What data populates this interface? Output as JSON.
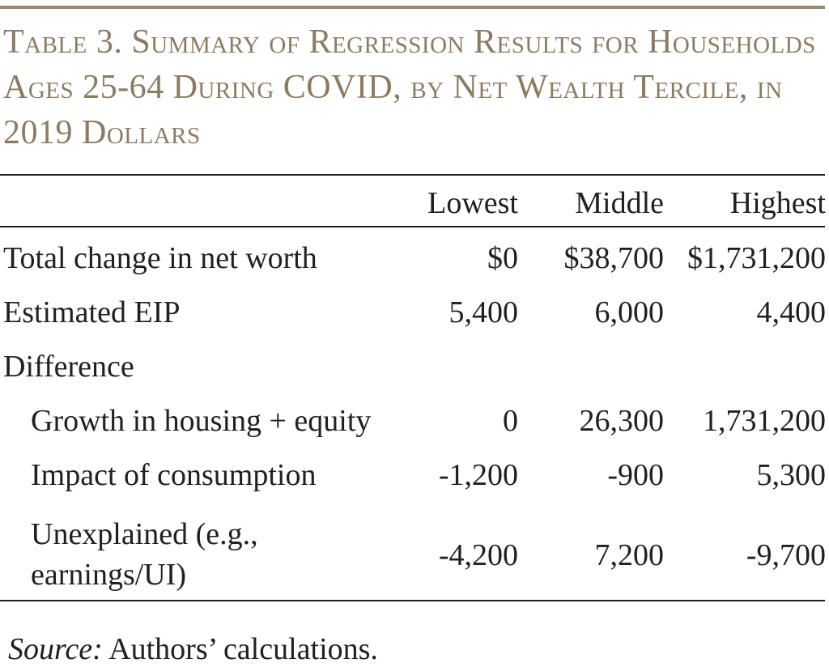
{
  "title": "Table 3. Summary of Regression Results for Households Ages 25-64 During COVID, by Net Wealth Tercile, in 2019 Dollars",
  "colors": {
    "title": "#8b7b63",
    "top_rule": "#9c8a6e",
    "text": "#231f20"
  },
  "columns": [
    "Lowest",
    "Middle",
    "Highest"
  ],
  "rows": [
    {
      "label": "Total change in net worth",
      "values": [
        "$0",
        "$38,700",
        "$1,731,200"
      ]
    },
    {
      "label": "Estimated EIP",
      "values": [
        "5,400",
        "6,000",
        "4,400"
      ]
    },
    {
      "label": "Difference"
    },
    {
      "label": "Growth in housing + equity",
      "values": [
        "0",
        "26,300",
        "1,731,200"
      ]
    },
    {
      "label": "Impact of consumption",
      "values": [
        "-1,200",
        "-900",
        "5,300"
      ]
    },
    {
      "label": "Unexplained (e.g., earnings/UI)",
      "values": [
        "-4,200",
        "7,200",
        "-9,700"
      ]
    }
  ],
  "source": {
    "label": "Source:",
    "text": " Authors’ calculations."
  }
}
